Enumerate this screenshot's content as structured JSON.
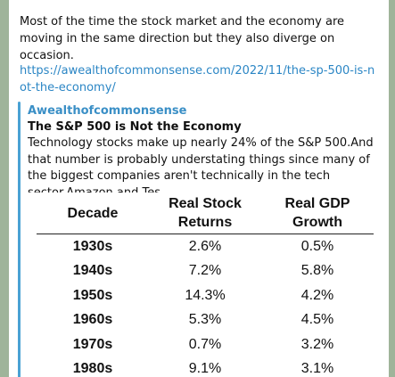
{
  "message": {
    "text": "Most of the time the stock market and the economy are moving in the same direction but they also diverge on occasion.",
    "link": "https://awealthofcommonsense.com/2022/11/the-sp-500-is-not-the-economy/"
  },
  "preview": {
    "site_name": "Awealthofcommonsense",
    "title": "The S&P 500 is Not the Economy",
    "description": "Technology stocks make up nearly 24% of the S&P 500.And that number is probably understating things since many of the biggest companies aren't technically in the tech sector.Amazon and Tes"
  },
  "chart_data": {
    "type": "table",
    "columns": [
      "Decade",
      "Real Stock Returns",
      "Real GDP Growth"
    ],
    "rows": [
      [
        "1930s",
        "2.6%",
        "0.5%"
      ],
      [
        "1940s",
        "7.2%",
        "5.8%"
      ],
      [
        "1950s",
        "14.3%",
        "4.2%"
      ],
      [
        "1960s",
        "5.3%",
        "4.5%"
      ],
      [
        "1970s",
        "0.7%",
        "3.2%"
      ],
      [
        "1980s",
        "9.1%",
        "3.1%"
      ]
    ]
  },
  "colors": {
    "link": "#2b86c5",
    "accent_bar": "#4aa2d4",
    "site_name": "#3a8fc6"
  }
}
